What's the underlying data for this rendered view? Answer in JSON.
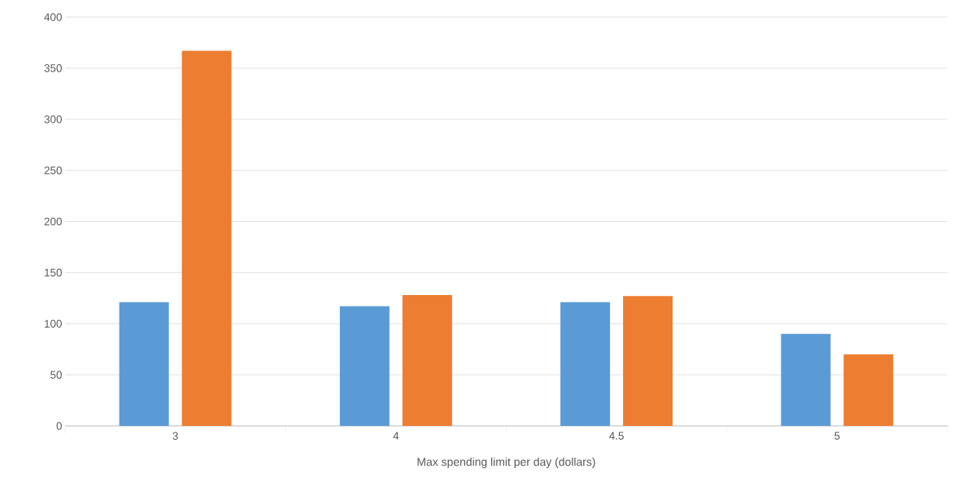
{
  "chart_data": {
    "type": "bar",
    "xlabel": "Max spending limit per day (dollars)",
    "categories": [
      "3",
      "4",
      "4.5",
      "5"
    ],
    "series": [
      {
        "color": "#5b9bd5",
        "values": [
          121,
          117,
          121,
          90
        ]
      },
      {
        "color": "#ed7d31",
        "values": [
          367,
          128,
          127,
          70
        ]
      }
    ],
    "ylim": [
      0,
      400
    ],
    "yticks": [
      0,
      50,
      100,
      150,
      200,
      250,
      300,
      350,
      400
    ],
    "grid": "y"
  }
}
